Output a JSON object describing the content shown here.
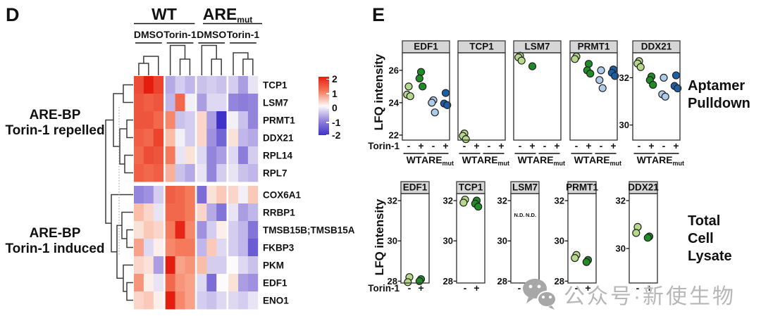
{
  "panel_d": {
    "label": "D",
    "genotypes": [
      {
        "label": "WT",
        "sub": ""
      },
      {
        "label": "ARE",
        "sub": "mut"
      }
    ],
    "treatments": [
      "DMSO",
      "Torin-1",
      "DMSO",
      "Torin-1"
    ],
    "clusters": [
      {
        "lines": [
          "ARE-BP",
          "Torin-1 repelled"
        ]
      },
      {
        "lines": [
          "ARE-BP",
          "Torin-1 induced"
        ]
      }
    ],
    "legend": {
      "ticks": [
        "2",
        "1",
        "0",
        "-1",
        "-2"
      ]
    }
  },
  "panel_e": {
    "label": "E",
    "ylabel": "LFQ intensity",
    "xlabel": "Torin-1",
    "tick_minus": "-",
    "tick_plus": "+",
    "nd": "N.D.",
    "row_labels": [
      {
        "lines": [
          "Aptamer",
          "Pulldown"
        ]
      },
      {
        "lines": [
          "Total",
          "Cell",
          "Lysate"
        ]
      }
    ]
  },
  "watermark": {
    "icon": "wechat-icon",
    "text": "公众号·新使生物"
  },
  "colors": {
    "heatmap_max": "#e41e0f",
    "heatmap_mid": "#fcfafa",
    "heatmap_min": "#3f32c8",
    "facet_header_bg": "#d6d6d6",
    "frame": "#3b3b3b",
    "series": {
      "wt_minus": "#b6d88a",
      "wt_plus": "#1f8c26",
      "are_minus": "#aecbe8",
      "are_plus": "#1b60a6"
    }
  },
  "chart_data": [
    {
      "type": "heatmap",
      "panel": "D",
      "rows": [
        "TCP1",
        "LSM7",
        "PRMT1",
        "DDX21",
        "RPL14",
        "RPL7",
        "COX6A1",
        "RRBP1",
        "TMSB15B;TMSB15A",
        "FKBP3",
        "PKM",
        "EDF1",
        "ENO1"
      ],
      "row_clusters": [
        {
          "label": "ARE-BP Torin-1 repelled",
          "rows": [
            "TCP1",
            "LSM7",
            "PRMT1",
            "DDX21",
            "RPL14",
            "RPL7"
          ]
        },
        {
          "label": "ARE-BP Torin-1 induced",
          "rows": [
            "COX6A1",
            "RRBP1",
            "TMSB15B;TMSB15A",
            "FKBP3",
            "PKM",
            "EDF1",
            "ENO1"
          ]
        }
      ],
      "col_groups": [
        {
          "genotype": "WT",
          "treatment": "DMSO",
          "replicates": 3
        },
        {
          "genotype": "WT",
          "treatment": "Torin-1",
          "replicates": 3
        },
        {
          "genotype": "ARE_mut",
          "treatment": "DMSO",
          "replicates": 3
        },
        {
          "genotype": "ARE_mut",
          "treatment": "Torin-1",
          "replicates": 3
        }
      ],
      "scale": {
        "min": -2,
        "max": 2,
        "ticks": [
          2,
          1,
          0,
          -1,
          -2
        ]
      },
      "values": [
        [
          1.5,
          2.0,
          1.6,
          -0.7,
          -0.4,
          -0.6,
          -0.5,
          -0.4,
          -0.5,
          -0.4,
          -0.8,
          -0.2
        ],
        [
          1.4,
          1.3,
          1.4,
          -0.6,
          1.2,
          -0.1,
          -0.8,
          -0.3,
          -0.3,
          -1.0,
          -1.1,
          -1.0
        ],
        [
          1.4,
          1.4,
          1.2,
          0.9,
          -0.5,
          -0.4,
          0.3,
          -0.8,
          -2.0,
          -0.1,
          -0.5,
          -1.0
        ],
        [
          1.3,
          1.2,
          1.6,
          0.5,
          -0.1,
          -0.4,
          0.3,
          -0.9,
          -1.4,
          0.2,
          -0.6,
          -0.7
        ],
        [
          1.2,
          1.5,
          1.4,
          1.0,
          -0.2,
          0.2,
          -0.3,
          -1.0,
          -0.8,
          -0.3,
          -1.1,
          -0.4
        ],
        [
          1.3,
          1.2,
          1.3,
          0.6,
          -0.5,
          -0.7,
          -0.2,
          -1.0,
          -0.4,
          -0.2,
          -0.5,
          -0.6
        ],
        [
          -1.0,
          -0.9,
          -0.4,
          1.3,
          1.2,
          1.0,
          -1.3,
          0.2,
          0.4,
          0.3,
          -0.1,
          0.4
        ],
        [
          0.5,
          0.3,
          -0.2,
          1.2,
          1.2,
          1.0,
          0.3,
          -0.7,
          -1.2,
          -0.2,
          -0.8,
          -0.6
        ],
        [
          0.2,
          0.4,
          0.3,
          1.0,
          1.9,
          0.9,
          -0.9,
          -0.4,
          0.1,
          -0.4,
          -0.6,
          -1.2
        ],
        [
          0.7,
          -0.3,
          0.1,
          0.9,
          1.0,
          1.0,
          -0.6,
          0.4,
          -0.3,
          -0.4,
          -0.6,
          -1.5
        ],
        [
          0.3,
          0.2,
          -0.8,
          2.0,
          0.7,
          0.8,
          0.5,
          -0.4,
          -0.4,
          0.0,
          -0.3,
          -0.5
        ],
        [
          0.8,
          0.1,
          -0.2,
          1.2,
          0.8,
          0.7,
          -0.3,
          -1.3,
          0.0,
          0.2,
          -0.8,
          -0.9
        ],
        [
          0.3,
          0.4,
          0.1,
          2.0,
          0.9,
          0.7,
          -0.4,
          -0.5,
          -0.3,
          -0.3,
          -0.4,
          -0.2
        ]
      ]
    },
    {
      "type": "scatter",
      "name": "Aptamer Pulldown",
      "ylabel": "LFQ intensity",
      "x_groups": [
        {
          "genotype": "WT",
          "sub": "",
          "ticks": [
            "-",
            "+"
          ]
        },
        {
          "genotype": "ARE",
          "sub": "mut",
          "ticks": [
            "-",
            "+"
          ]
        }
      ],
      "facets": [
        {
          "gene": "EDF1",
          "ylim": [
            21.7,
            27.1
          ],
          "yticks": [
            26,
            24,
            22
          ],
          "yticks_shown": true,
          "series": {
            "wt_minus": [
              25.0,
              24.5,
              24.4
            ],
            "wt_plus": [
              25.9,
              25.5,
              25.0
            ],
            "are_minus": [
              24.15,
              24.0,
              23.4
            ],
            "are_plus": [
              24.6,
              23.95,
              23.85
            ]
          }
        },
        {
          "gene": "TCP1",
          "ylim": [
            21.7,
            27.1
          ],
          "yticks": [
            26,
            24,
            22
          ],
          "yticks_shown": false,
          "series": {
            "wt_minus": [
              22.1,
              21.95,
              21.75
            ],
            "wt_plus": [],
            "are_minus": [],
            "are_plus": []
          }
        },
        {
          "gene": "LSM7",
          "ylim": [
            21.7,
            27.1
          ],
          "yticks": [
            26,
            24,
            22
          ],
          "yticks_shown": false,
          "series": {
            "wt_minus": [
              26.9,
              26.8,
              26.6
            ],
            "wt_plus": [
              26.25
            ],
            "are_minus": [],
            "are_plus": []
          }
        },
        {
          "gene": "PRMT1",
          "ylim": [
            21.7,
            27.1
          ],
          "yticks": [
            26,
            24,
            22
          ],
          "yticks_shown": false,
          "series": {
            "wt_minus": [
              26.85,
              26.7
            ],
            "wt_plus": [
              26.4,
              26.0,
              25.8
            ],
            "are_minus": [
              26.0,
              25.4,
              24.9
            ],
            "are_plus": [
              26.05,
              25.85,
              25.65
            ]
          }
        },
        {
          "gene": "DDX21",
          "ylim": [
            29.4,
            33.0
          ],
          "yticks": [
            32,
            30
          ],
          "yticks_shown": true,
          "series": {
            "wt_minus": [
              32.7,
              32.6,
              32.45
            ],
            "wt_plus": [
              32.05,
              31.9,
              31.7
            ],
            "are_minus": [
              32.0,
              31.3,
              31.2
            ],
            "are_plus": [
              32.1,
              31.65,
              31.55
            ]
          }
        }
      ]
    },
    {
      "type": "scatter",
      "name": "Total Cell Lysate",
      "ylabel": "LFQ intensity",
      "x_ticks": [
        "-",
        "+"
      ],
      "facets": [
        {
          "gene": "EDF1",
          "ylim": [
            27.9,
            32.35
          ],
          "yticks": [
            32,
            30,
            28
          ],
          "series": {
            "minus": [
              28.2,
              27.95
            ],
            "plus": [
              28.1,
              28.0
            ]
          }
        },
        {
          "gene": "TCP1",
          "ylim": [
            27.9,
            32.35
          ],
          "yticks": [
            32,
            30,
            28
          ],
          "series": {
            "minus": [
              32.05,
              31.9
            ],
            "plus": [
              32.0,
              31.85,
              31.7
            ]
          }
        },
        {
          "gene": "LSM7",
          "ylim": [
            27.9,
            32.35
          ],
          "yticks": [
            32,
            30,
            28
          ],
          "nd": true,
          "series": {
            "minus": [],
            "plus": []
          }
        },
        {
          "gene": "PRMT1",
          "ylim": [
            27.9,
            32.35
          ],
          "yticks": [
            32,
            30,
            28
          ],
          "series": {
            "minus": [
              29.3,
              29.15
            ],
            "plus": [
              29.05,
              28.95
            ]
          }
        },
        {
          "gene": "DDX21",
          "ylim": [
            28.6,
            32.35
          ],
          "yticks": [
            32,
            30
          ],
          "series": {
            "minus": [
              30.9,
              30.65
            ],
            "plus": [
              30.5,
              30.45
            ]
          }
        }
      ]
    }
  ]
}
